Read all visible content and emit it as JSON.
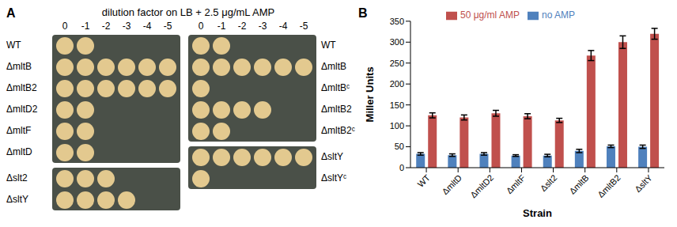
{
  "panel_a": {
    "label": "A",
    "header": "dilution factor on LB + 2.5 μg/mL AMP",
    "dilutions": [
      0,
      -1,
      -2,
      -3,
      -4,
      -5
    ],
    "columns": [
      [
        {
          "strains": [
            "WT",
            "ΔmltB",
            "ΔmltB2",
            "ΔmltD2",
            "ΔmltF",
            "ΔmltD"
          ],
          "spots": [
            2,
            6,
            6,
            2,
            2,
            2
          ]
        },
        {
          "strains": [
            "Δslt2",
            "ΔsltY"
          ],
          "spots": [
            3,
            4
          ]
        }
      ],
      [
        {
          "strains": [
            "WT",
            "ΔmltB",
            "ΔmltBᶜ",
            "ΔmltB2",
            "ΔmltB2ᶜ"
          ],
          "spots": [
            2,
            6,
            1,
            4,
            2
          ]
        },
        {
          "strains": [
            "ΔsltY",
            "ΔsltYᶜ"
          ],
          "spots": [
            6,
            1
          ]
        }
      ]
    ]
  },
  "chart_data": {
    "type": "bar",
    "panel_label": "B",
    "x_label": "Strain",
    "y_label": "Miller Units",
    "categories": [
      "WT",
      "ΔmltD",
      "ΔmltD2",
      "ΔmltF",
      "Δslt2",
      "ΔmltB",
      "ΔmltB2",
      "ΔsltY"
    ],
    "series": [
      {
        "name": "no AMP",
        "color": "#4f81bd",
        "values": [
          33,
          30,
          33,
          29,
          29,
          40,
          51,
          50
        ],
        "errors": [
          3,
          3,
          3,
          2,
          3,
          4,
          3,
          4
        ]
      },
      {
        "name": "50 μg/ml AMP",
        "color": "#c0504d",
        "values": [
          125,
          120,
          130,
          123,
          113,
          268,
          300,
          320
        ],
        "errors": [
          6,
          6,
          7,
          6,
          5,
          12,
          15,
          13
        ]
      }
    ],
    "ylim": [
      0,
      350
    ],
    "yticks": [
      0,
      50,
      100,
      150,
      200,
      250,
      300,
      350
    ],
    "grid": false,
    "legend": "top"
  }
}
